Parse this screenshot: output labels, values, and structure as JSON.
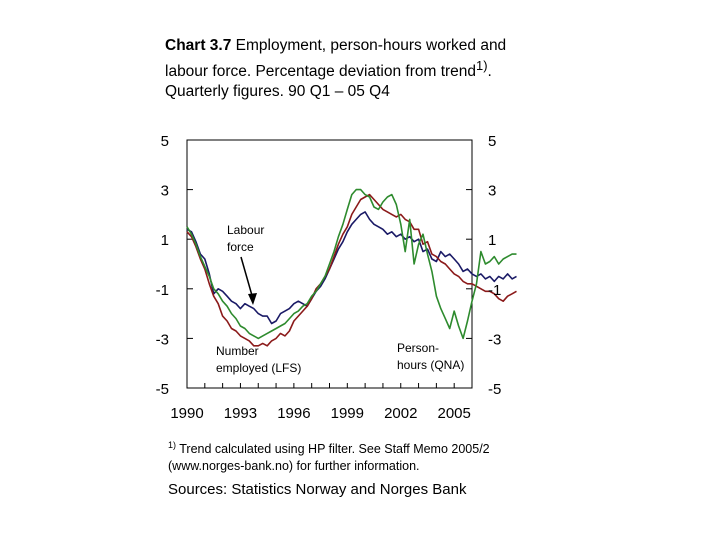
{
  "title": {
    "number": "Chart 3.7",
    "text": "Employment, person-hours worked and labour force. Percentage deviation from trend",
    "sup": "1)",
    "rest": ". Quarterly figures. 90 Q1 – 05 Q4"
  },
  "footnote": {
    "marker": "1)",
    "text": "Trend calculated using HP filter. See Staff Memo 2005/2 (www.norges-bank.no) for further information."
  },
  "sources": "Sources: Statistics Norway and Norges Bank",
  "annotations": {
    "labour_force_line1": "Labour",
    "labour_force_line2": "force",
    "employed_line1": "Number",
    "employed_line2": "employed (LFS)",
    "hours_line1": "Person-",
    "hours_line2": "hours (QNA)"
  },
  "colors": {
    "labour_force": "#1a1a66",
    "employed": "#8b1a1a",
    "hours": "#2e8b2e"
  },
  "chart_data": {
    "type": "line",
    "xlim": [
      1990,
      2006
    ],
    "ylim": [
      -5,
      5
    ],
    "y_ticks": [
      5,
      3,
      1,
      -1,
      -3,
      -5
    ],
    "x_ticks": [
      1990,
      1993,
      1996,
      1999,
      2002,
      2005
    ],
    "x_tick_labels": [
      "1990",
      "1993",
      "1996",
      "1999",
      "2002",
      "2005"
    ],
    "y_tick_labels": [
      "5",
      "3",
      "1",
      "-1",
      "-3",
      "-5"
    ],
    "x_start": 1990,
    "step": 0.25,
    "series": [
      {
        "key": "labour_force",
        "values": [
          1.4,
          1.3,
          0.9,
          0.4,
          0.2,
          -0.4,
          -1.2,
          -1.0,
          -1.1,
          -1.3,
          -1.5,
          -1.6,
          -1.8,
          -1.6,
          -1.7,
          -1.8,
          -2.0,
          -2.1,
          -2.1,
          -2.4,
          -2.3,
          -2.0,
          -1.9,
          -1.8,
          -1.6,
          -1.5,
          -1.6,
          -1.7,
          -1.4,
          -1.1,
          -0.9,
          -0.6,
          -0.2,
          0.2,
          0.6,
          0.9,
          1.3,
          1.6,
          1.8,
          2.0,
          2.1,
          1.8,
          1.6,
          1.5,
          1.4,
          1.2,
          1.3,
          1.1,
          1.2,
          1.0,
          1.1,
          0.9,
          1.0,
          0.5,
          0.6,
          0.2,
          0.1,
          0.5,
          0.3,
          0.4,
          0.2,
          0.0,
          -0.3,
          -0.2,
          -0.4,
          -0.5,
          -0.4,
          -0.6,
          -0.5,
          -0.7,
          -0.5,
          -0.6,
          -0.4,
          -0.6,
          -0.5
        ]
      },
      {
        "key": "employed",
        "values": [
          1.3,
          1.1,
          0.7,
          0.2,
          -0.2,
          -0.8,
          -1.3,
          -1.6,
          -2.1,
          -2.3,
          -2.6,
          -2.7,
          -2.9,
          -3.0,
          -3.1,
          -3.3,
          -3.3,
          -3.2,
          -3.3,
          -3.1,
          -3.0,
          -2.8,
          -2.9,
          -2.7,
          -2.3,
          -2.1,
          -1.9,
          -1.7,
          -1.4,
          -1.0,
          -0.8,
          -0.5,
          -0.2,
          0.3,
          0.8,
          1.2,
          1.5,
          2.0,
          2.3,
          2.6,
          2.7,
          2.8,
          2.6,
          2.4,
          2.2,
          2.1,
          2.0,
          1.9,
          2.0,
          1.8,
          1.7,
          1.4,
          1.4,
          0.8,
          0.9,
          0.4,
          0.3,
          0.1,
          0.0,
          -0.2,
          -0.4,
          -0.5,
          -0.7,
          -0.8,
          -0.8,
          -0.9,
          -1.0,
          -1.1,
          -1.1,
          -1.2,
          -1.4,
          -1.5,
          -1.3,
          -1.2,
          -1.1
        ]
      },
      {
        "key": "hours",
        "values": [
          1.5,
          1.2,
          0.8,
          0.3,
          -0.1,
          -0.5,
          -1.0,
          -1.2,
          -1.5,
          -1.7,
          -2.0,
          -2.2,
          -2.5,
          -2.6,
          -2.8,
          -2.9,
          -3.0,
          -2.9,
          -2.8,
          -2.7,
          -2.6,
          -2.5,
          -2.4,
          -2.2,
          -2.0,
          -1.9,
          -1.7,
          -1.6,
          -1.3,
          -1.1,
          -0.8,
          -0.5,
          0.0,
          0.5,
          1.1,
          1.6,
          2.2,
          2.8,
          3.0,
          3.0,
          2.8,
          2.7,
          2.3,
          2.2,
          2.5,
          2.7,
          2.8,
          2.4,
          1.6,
          0.5,
          1.8,
          0.0,
          0.8,
          1.2,
          0.4,
          -0.3,
          -1.3,
          -1.8,
          -2.2,
          -2.6,
          -1.9,
          -2.5,
          -3.0,
          -2.3,
          -1.5,
          -0.8,
          0.5,
          0.0,
          0.1,
          0.3,
          0.0,
          0.2,
          0.3,
          0.4,
          0.4
        ]
      }
    ]
  }
}
